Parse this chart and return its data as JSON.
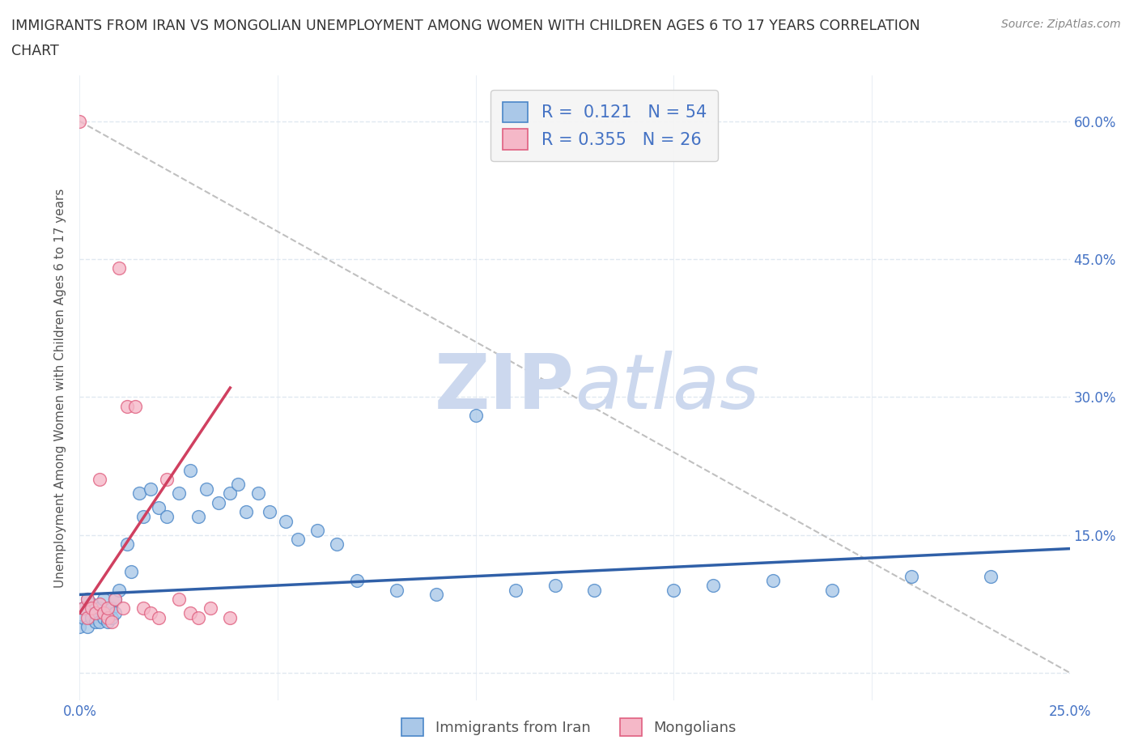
{
  "title_line1": "IMMIGRANTS FROM IRAN VS MONGOLIAN UNEMPLOYMENT AMONG WOMEN WITH CHILDREN AGES 6 TO 17 YEARS CORRELATION",
  "title_line2": "CHART",
  "source": "Source: ZipAtlas.com",
  "ylabel": "Unemployment Among Women with Children Ages 6 to 17 years",
  "xmin": 0.0,
  "xmax": 0.25,
  "ymin": -0.03,
  "ymax": 0.65,
  "xticks": [
    0.0,
    0.05,
    0.1,
    0.15,
    0.2,
    0.25
  ],
  "xtick_labels": [
    "0.0%",
    "",
    "",
    "",
    "",
    "25.0%"
  ],
  "yticks": [
    0.0,
    0.15,
    0.3,
    0.45,
    0.6
  ],
  "ytick_labels_right": [
    "",
    "15.0%",
    "30.0%",
    "45.0%",
    "60.0%"
  ],
  "iran_R": "0.121",
  "iran_N": "54",
  "mongol_R": "0.355",
  "mongol_N": "26",
  "iran_color": "#aac8e8",
  "iran_edge_color": "#4a86c8",
  "mongol_color": "#f5b8c8",
  "mongol_edge_color": "#e06080",
  "iran_line_color": "#3060a8",
  "mongol_line_color": "#d04060",
  "dashed_line_color": "#c0c0c0",
  "iran_scatter_x": [
    0.0,
    0.001,
    0.001,
    0.002,
    0.002,
    0.003,
    0.003,
    0.004,
    0.004,
    0.005,
    0.005,
    0.006,
    0.006,
    0.007,
    0.007,
    0.008,
    0.008,
    0.009,
    0.009,
    0.01,
    0.012,
    0.013,
    0.015,
    0.016,
    0.018,
    0.02,
    0.022,
    0.025,
    0.028,
    0.03,
    0.032,
    0.035,
    0.038,
    0.04,
    0.042,
    0.045,
    0.048,
    0.052,
    0.055,
    0.06,
    0.065,
    0.07,
    0.08,
    0.09,
    0.1,
    0.11,
    0.12,
    0.13,
    0.15,
    0.16,
    0.175,
    0.19,
    0.21,
    0.23
  ],
  "iran_scatter_y": [
    0.05,
    0.06,
    0.07,
    0.08,
    0.05,
    0.06,
    0.075,
    0.055,
    0.065,
    0.07,
    0.055,
    0.06,
    0.08,
    0.065,
    0.055,
    0.07,
    0.06,
    0.08,
    0.065,
    0.09,
    0.14,
    0.11,
    0.195,
    0.17,
    0.2,
    0.18,
    0.17,
    0.195,
    0.22,
    0.17,
    0.2,
    0.185,
    0.195,
    0.205,
    0.175,
    0.195,
    0.175,
    0.165,
    0.145,
    0.155,
    0.14,
    0.1,
    0.09,
    0.085,
    0.28,
    0.09,
    0.095,
    0.09,
    0.09,
    0.095,
    0.1,
    0.09,
    0.105,
    0.105
  ],
  "mongol_scatter_x": [
    0.0,
    0.001,
    0.002,
    0.002,
    0.003,
    0.004,
    0.005,
    0.005,
    0.006,
    0.007,
    0.007,
    0.008,
    0.009,
    0.01,
    0.011,
    0.012,
    0.014,
    0.016,
    0.018,
    0.02,
    0.022,
    0.025,
    0.028,
    0.03,
    0.033,
    0.038
  ],
  "mongol_scatter_y": [
    0.6,
    0.07,
    0.08,
    0.06,
    0.07,
    0.065,
    0.21,
    0.075,
    0.065,
    0.06,
    0.07,
    0.055,
    0.08,
    0.44,
    0.07,
    0.29,
    0.29,
    0.07,
    0.065,
    0.06,
    0.21,
    0.08,
    0.065,
    0.06,
    0.07,
    0.06
  ],
  "iran_trend_x": [
    0.0,
    0.25
  ],
  "iran_trend_y": [
    0.085,
    0.135
  ],
  "mongol_trend_x": [
    0.0,
    0.038
  ],
  "mongol_trend_y": [
    0.065,
    0.31
  ],
  "dashed_trend_x": [
    0.0,
    0.25
  ],
  "dashed_trend_y": [
    0.6,
    0.0
  ],
  "watermark_zip": "ZIP",
  "watermark_atlas": "atlas",
  "watermark_color": "#ccd8ee",
  "background_color": "#ffffff",
  "grid_color": "#e0e8f0",
  "title_color": "#333333",
  "label_color": "#555555",
  "tick_color": "#4472c4",
  "legend_text_color": "#4472c4"
}
